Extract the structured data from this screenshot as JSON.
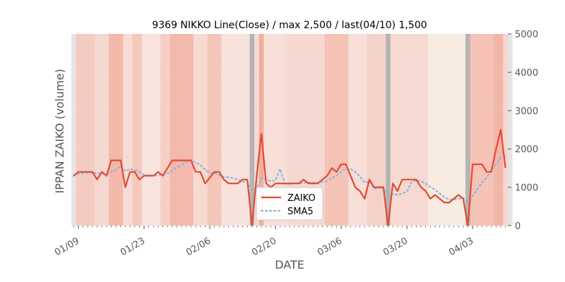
{
  "chart_data": {
    "type": "line",
    "title": "9369 NIKKO Line(Close) / max 2,500 / last(04/10) 1,500",
    "xlabel": "DATE",
    "ylabel": "IPPAN ZAIKO (volume)",
    "ylim": [
      0,
      5000
    ],
    "y_ticks": [
      0,
      1000,
      2000,
      3000,
      4000,
      5000
    ],
    "y_tick_labels": [
      "0",
      "1000",
      "2000",
      "3000",
      "4000",
      "5000"
    ],
    "y_axis_side": "right",
    "x_tick_labels": [
      {
        "label": "01/09",
        "index": 1
      },
      {
        "label": "01/23",
        "index": 15
      },
      {
        "label": "02/06",
        "index": 29
      },
      {
        "label": "02/20",
        "index": 43
      },
      {
        "label": "03/06",
        "index": 57
      },
      {
        "label": "03/20",
        "index": 71
      },
      {
        "label": "04/03",
        "index": 85
      }
    ],
    "grid": true,
    "legend_position": "lower-center",
    "series": [
      {
        "name": "ZAIKO",
        "color": "#e24a33",
        "style": "solid",
        "values": [
          1300,
          1400,
          1400,
          1400,
          1400,
          1200,
          1400,
          1300,
          1700,
          1700,
          1700,
          1000,
          1400,
          1400,
          1200,
          1300,
          1300,
          1300,
          1400,
          1300,
          1500,
          1700,
          1700,
          1700,
          1700,
          1700,
          1400,
          1400,
          1100,
          1250,
          1400,
          1400,
          1200,
          1100,
          1100,
          1100,
          1200,
          1200,
          0,
          1300,
          2400,
          1100,
          1000,
          1100,
          1100,
          1100,
          1100,
          1100,
          1100,
          1200,
          1100,
          1100,
          1100,
          1200,
          1300,
          1500,
          1400,
          1600,
          1600,
          1300,
          1000,
          900,
          700,
          1200,
          1000,
          1000,
          1000,
          0,
          1100,
          900,
          1200,
          1200,
          1200,
          1200,
          1000,
          900,
          700,
          800,
          700,
          600,
          600,
          700,
          800,
          700,
          0,
          1600,
          1600,
          1600,
          1400,
          1400,
          2000,
          2500,
          1500
        ]
      },
      {
        "name": "SMA5",
        "color": "#8eb4d9",
        "style": "dotted",
        "values": [
          1300,
          1350,
          1367,
          1375,
          1380,
          1360,
          1360,
          1340,
          1400,
          1460,
          1560,
          1420,
          1480,
          1440,
          1400,
          1320,
          1320,
          1300,
          1320,
          1320,
          1360,
          1440,
          1520,
          1580,
          1660,
          1700,
          1640,
          1580,
          1460,
          1370,
          1370,
          1310,
          1270,
          1260,
          1240,
          1200,
          1140,
          1140,
          920,
          980,
          1240,
          1200,
          1160,
          1180,
          1480,
          1080,
          1080,
          1100,
          1100,
          1120,
          1120,
          1120,
          1120,
          1140,
          1160,
          1240,
          1300,
          1420,
          1480,
          1480,
          1400,
          1280,
          1120,
          1160,
          960,
          980,
          980,
          780,
          820,
          800,
          840,
          880,
          1140,
          1180,
          1160,
          1100,
          1000,
          940,
          840,
          740,
          680,
          680,
          700,
          720,
          560,
          780,
          940,
          1120,
          1260,
          1440,
          1600,
          1760,
          1800
        ]
      }
    ],
    "shading_bands": [
      {
        "start": -0.5,
        "end": 0.5,
        "color": "#e4e4e4"
      },
      {
        "start": 0.5,
        "end": 4.5,
        "color": "#f4cbc1"
      },
      {
        "start": 4.5,
        "end": 7.5,
        "color": "#f5d8d0"
      },
      {
        "start": 7.5,
        "end": 10.5,
        "color": "#f3b8aa"
      },
      {
        "start": 10.5,
        "end": 12.5,
        "color": "#f6dcd5"
      },
      {
        "start": 12.5,
        "end": 14.5,
        "color": "#f4c8bc"
      },
      {
        "start": 14.5,
        "end": 18.5,
        "color": "#f8e3dd"
      },
      {
        "start": 18.5,
        "end": 20.5,
        "color": "#f5cfc5"
      },
      {
        "start": 20.5,
        "end": 25.5,
        "color": "#f3b9ac"
      },
      {
        "start": 25.5,
        "end": 28.5,
        "color": "#f6d9d1"
      },
      {
        "start": 28.5,
        "end": 31.5,
        "color": "#f4c6ba"
      },
      {
        "start": 31.5,
        "end": 37.5,
        "color": "#f7e2dc"
      },
      {
        "start": 37.5,
        "end": 38.5,
        "color": "#b3b3b3"
      },
      {
        "start": 38.5,
        "end": 39.5,
        "color": "#f6dad2"
      },
      {
        "start": 39.5,
        "end": 40.5,
        "color": "#f2ac9c"
      },
      {
        "start": 40.5,
        "end": 45.5,
        "color": "#f7dfd8"
      },
      {
        "start": 45.5,
        "end": 53.5,
        "color": "#f6d8d0"
      },
      {
        "start": 53.5,
        "end": 58.5,
        "color": "#f4c3b6"
      },
      {
        "start": 58.5,
        "end": 62.5,
        "color": "#f7ded7"
      },
      {
        "start": 62.5,
        "end": 66.5,
        "color": "#f5d2c9"
      },
      {
        "start": 66.5,
        "end": 67.5,
        "color": "#b3b3b3"
      },
      {
        "start": 67.5,
        "end": 75.5,
        "color": "#f6d9d1"
      },
      {
        "start": 75.5,
        "end": 83.5,
        "color": "#f7ebe2"
      },
      {
        "start": 83.5,
        "end": 84.5,
        "color": "#b3b3b3"
      },
      {
        "start": 84.5,
        "end": 89.5,
        "color": "#f4c3b6"
      },
      {
        "start": 89.5,
        "end": 91.5,
        "color": "#f3b5a7"
      },
      {
        "start": 91.5,
        "end": 92.5,
        "color": "#f6d6ce"
      },
      {
        "start": 92.5,
        "end": 93.5,
        "color": "#e4e4e4"
      }
    ]
  }
}
